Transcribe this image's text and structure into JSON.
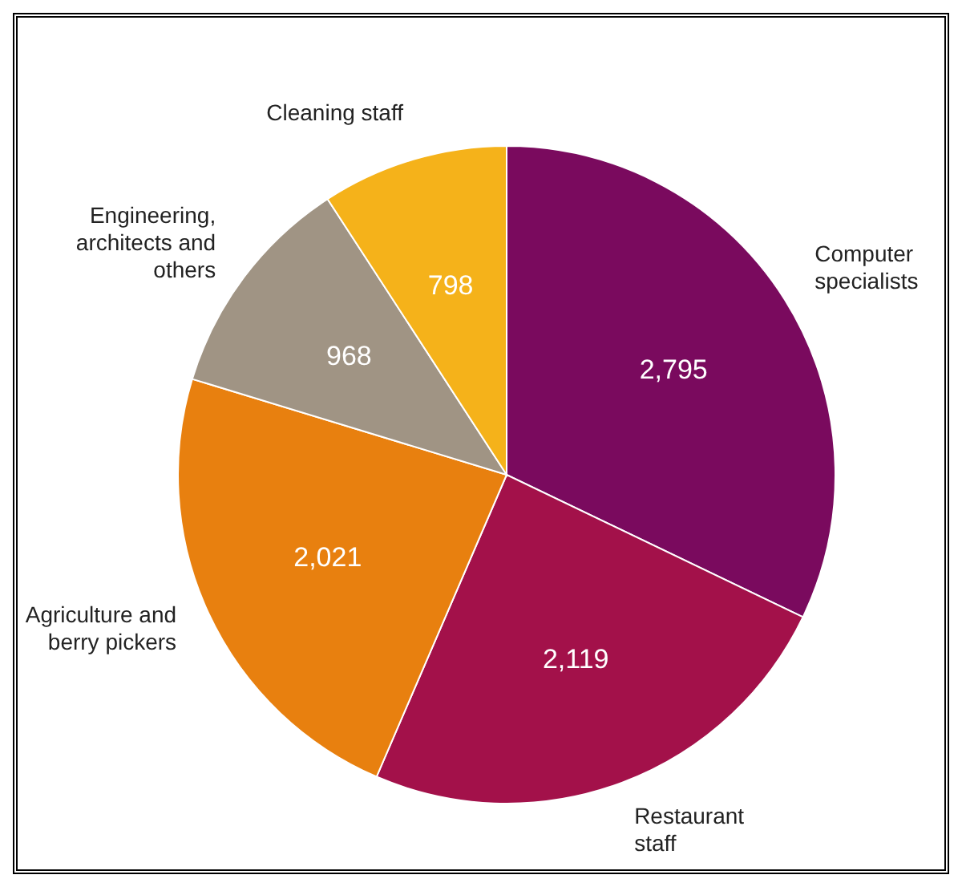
{
  "chart_data": {
    "type": "pie",
    "categories": [
      "Computer specialists",
      "Restaurant staff",
      "Agriculture and berry pickers",
      "Engineering, architects and others",
      "Cleaning staff"
    ],
    "values": [
      2795,
      2119,
      2021,
      968,
      798
    ],
    "value_labels": [
      "2,795",
      "2,119",
      "2,021",
      "968",
      "798"
    ],
    "colors": [
      "#7a0a5e",
      "#a3114a",
      "#e8800f",
      "#a09484",
      "#f5b21a"
    ]
  }
}
